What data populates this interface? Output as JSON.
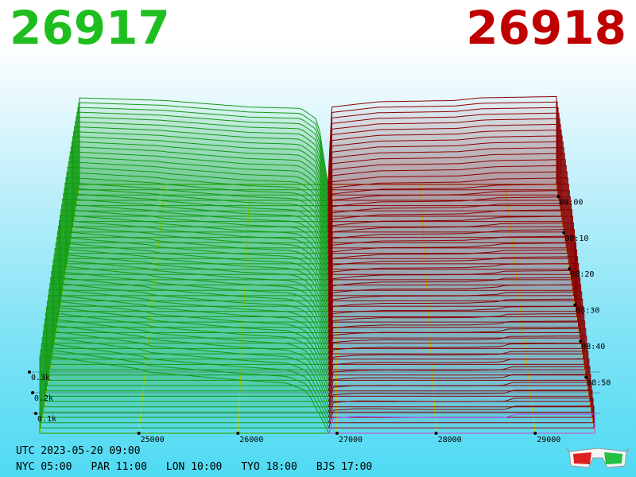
{
  "header": {
    "bid_price": "26917",
    "ask_price": "26918"
  },
  "colors": {
    "bid": "#1fbe1f",
    "ask": "#c00000",
    "grid": "#e6e600",
    "current_ask": "#b040ff"
  },
  "footer": {
    "utc": "UTC 2023-05-20 09:00",
    "cities": [
      {
        "label": "NYC 05:00"
      },
      {
        "label": "PAR 11:00"
      },
      {
        "label": "LON 10:00"
      },
      {
        "label": "TYO 18:00"
      },
      {
        "label": "BJS 17:00"
      }
    ]
  },
  "icons": {
    "glasses": "3d-glasses-icon"
  },
  "chart_data": {
    "type": "area",
    "view": "3d-depth-history",
    "x_ticks": [
      "25000",
      "26000",
      "27000",
      "28000",
      "29000"
    ],
    "x_tick_values": [
      25000,
      26000,
      27000,
      28000,
      29000
    ],
    "y_ticks": [
      "0.1k",
      "0.2k",
      "0.3k"
    ],
    "y_tick_values": [
      100,
      200,
      300
    ],
    "time_ticks": [
      "08:00",
      "08:10",
      "08:20",
      "08:30",
      "08:40",
      "08:50"
    ],
    "xlim": [
      24000,
      29600
    ],
    "mid_price": 26917.5,
    "slices": 48,
    "series": [
      {
        "name": "",
        "side": "bid",
        "depth_front": [
          [
            24000,
            162
          ],
          [
            24150,
            160
          ],
          [
            25000,
            135
          ],
          [
            25100,
            128
          ],
          [
            26000,
            112
          ],
          [
            26500,
            105
          ],
          [
            26700,
            88
          ],
          [
            26850,
            28
          ],
          [
            26917,
            0
          ]
        ],
        "depth_back": [
          [
            24000,
            330
          ],
          [
            25000,
            320
          ],
          [
            26000,
            295
          ],
          [
            26600,
            290
          ],
          [
            26800,
            245
          ],
          [
            26917,
            0
          ]
        ]
      },
      {
        "name": "",
        "side": "ask",
        "depth_front": [
          [
            26918,
            0
          ],
          [
            26960,
            32
          ],
          [
            27200,
            35
          ],
          [
            28000,
            33
          ],
          [
            28700,
            33
          ],
          [
            28800,
            40
          ],
          [
            29600,
            40
          ]
        ],
        "depth_back": [
          [
            26918,
            0
          ],
          [
            26960,
            295
          ],
          [
            27500,
            315
          ],
          [
            28400,
            320
          ],
          [
            28700,
            330
          ],
          [
            29600,
            335
          ]
        ]
      }
    ],
    "title": "",
    "xlabel": "",
    "ylabel": "",
    "grid": true
  }
}
